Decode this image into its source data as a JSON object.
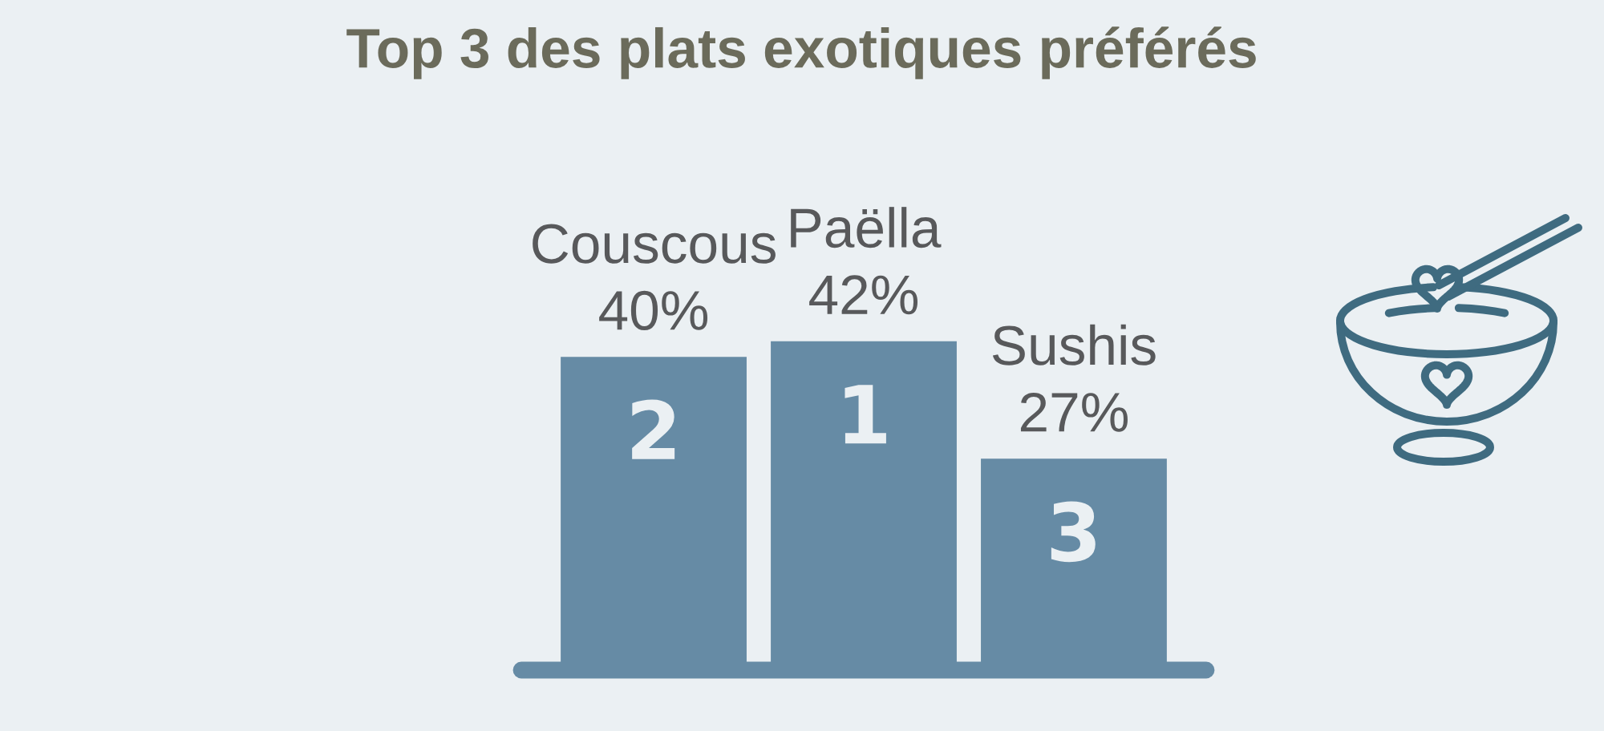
{
  "chart_data": {
    "type": "bar",
    "title": "Top 3 des plats exotiques préférés",
    "categories": [
      "Couscous",
      "Paëlla",
      "Sushis"
    ],
    "values": [
      40,
      42,
      27
    ],
    "value_labels": [
      "40%",
      "42%",
      "27%"
    ],
    "color": "#668ba5",
    "annotations": [
      "2",
      "1",
      "3"
    ]
  }
}
